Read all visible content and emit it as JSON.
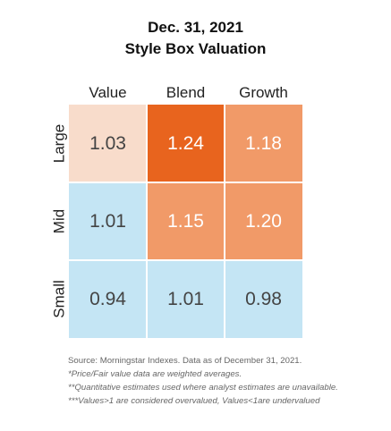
{
  "chart_data": {
    "type": "heatmap",
    "title": "Dec. 31, 2021",
    "subtitle": "Style Box Valuation",
    "columns": [
      "Value",
      "Blend",
      "Growth"
    ],
    "rows": [
      "Large",
      "Mid",
      "Small"
    ],
    "values": [
      [
        1.03,
        1.24,
        1.18
      ],
      [
        1.01,
        1.15,
        1.2
      ],
      [
        0.94,
        1.01,
        0.98
      ]
    ],
    "value_labels": [
      [
        "1.03",
        "1.24",
        "1.18"
      ],
      [
        "1.01",
        "1.15",
        "1.20"
      ],
      [
        "0.94",
        "1.01",
        "0.98"
      ]
    ],
    "colors": [
      [
        "#f8dccb",
        "#e8641e",
        "#f19a68"
      ],
      [
        "#c4e5f4",
        "#f19a68",
        "#f19a68"
      ],
      [
        "#c4e5f4",
        "#c4e5f4",
        "#c4e5f4"
      ]
    ],
    "text_colors": [
      [
        "#444444",
        "#ffffff",
        "#ffffff"
      ],
      [
        "#444444",
        "#ffffff",
        "#ffffff"
      ],
      [
        "#444444",
        "#444444",
        "#444444"
      ]
    ]
  },
  "notes": {
    "source": "Source: Morningstar Indexes. Data as of December 31, 2021.",
    "note1": "*Price/Fair value data are weighted averages.",
    "note2": "**Quantitative estimates used where analyst estimates are unavailable.",
    "note3": "***Values>1 are considered overvalued, Values<1are undervalued"
  }
}
